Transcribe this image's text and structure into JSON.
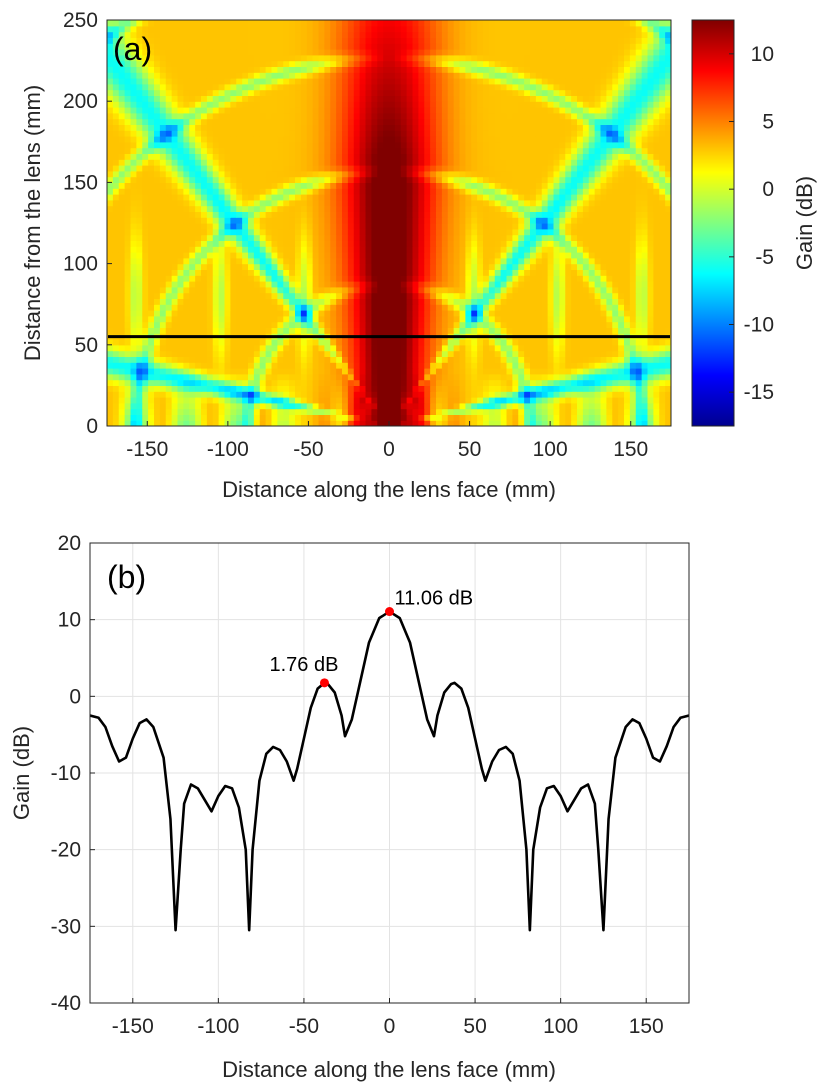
{
  "chart_data": [
    {
      "type": "heatmap",
      "panel_label": "(a)",
      "xlabel": "Distance along the lens face (mm)",
      "ylabel": "Distance from the lens (mm)",
      "xlim": [
        -175,
        175
      ],
      "ylim": [
        0,
        250
      ],
      "xticks": [
        -150,
        -100,
        -50,
        0,
        50,
        100,
        150
      ],
      "yticks": [
        0,
        50,
        100,
        150,
        200,
        250
      ],
      "colorbar": {
        "label": "Gain (dB)",
        "range": [
          -17.5,
          12.5
        ],
        "ticks": [
          -15,
          -10,
          -5,
          0,
          5,
          10
        ],
        "colormap": [
          "#00008f",
          "#0000ff",
          "#0080ff",
          "#00ffff",
          "#80ff80",
          "#ffff00",
          "#ff8000",
          "#ff0000",
          "#800000"
        ]
      },
      "cut_line": {
        "y": 55,
        "color": "#000000"
      }
    },
    {
      "type": "line",
      "panel_label": "(b)",
      "xlabel": "Distance along the lens face (mm)",
      "ylabel": "Gain (dB)",
      "xlim": [
        -175,
        175
      ],
      "ylim": [
        -40,
        20
      ],
      "xticks": [
        -150,
        -100,
        -50,
        0,
        50,
        100,
        150
      ],
      "yticks": [
        20,
        10,
        0,
        -10,
        -20,
        -30,
        -40
      ],
      "grid": true,
      "series": [
        {
          "name": "Gain",
          "color": "#000000",
          "x": [
            0,
            6,
            12,
            18,
            22,
            26,
            28,
            32,
            36,
            38,
            42,
            46,
            50,
            54,
            56,
            60,
            64,
            68,
            72,
            76,
            80,
            82,
            84,
            88,
            92,
            96,
            100,
            104,
            108,
            112,
            116,
            120,
            122,
            125,
            128,
            132,
            138,
            142,
            146,
            150,
            154,
            158,
            162,
            166,
            170,
            175
          ],
          "y": [
            11.06,
            10.2,
            7.0,
            1.0,
            -3.0,
            -5.2,
            -2.5,
            0.5,
            1.6,
            1.76,
            1.0,
            -1.5,
            -5.5,
            -9.5,
            -11.0,
            -8.5,
            -7.0,
            -6.6,
            -7.5,
            -11.0,
            -20.0,
            -30.5,
            -20.0,
            -14.5,
            -12.0,
            -11.7,
            -13.0,
            -15.0,
            -13.5,
            -12.0,
            -11.5,
            -14.0,
            -20.0,
            -30.5,
            -16.0,
            -8.0,
            -4.0,
            -3.0,
            -3.5,
            -5.5,
            -8.0,
            -8.5,
            -6.5,
            -4.0,
            -2.8,
            -2.5
          ]
        }
      ],
      "annotations": [
        {
          "x": 0,
          "y": 11.06,
          "text": "11.06 dB",
          "color": "#ff0000"
        },
        {
          "x": -38,
          "y": 1.76,
          "text": "1.76 dB",
          "color": "#ff0000"
        }
      ]
    }
  ]
}
